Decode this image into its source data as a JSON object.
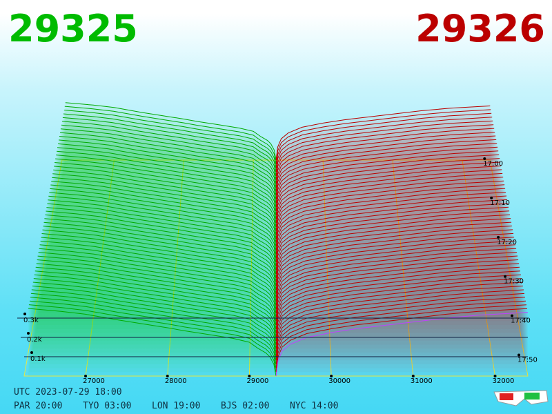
{
  "header": {
    "bid": "29325",
    "ask": "29326"
  },
  "chart_data": {
    "type": "depth3d",
    "bids": {
      "color": "#00aa00",
      "prices": [
        29325,
        29300,
        29250,
        29200,
        29100,
        29000,
        28800,
        28500,
        28200,
        28000,
        27700,
        27400,
        27000,
        26700,
        26300
      ],
      "volumes": [
        0,
        60,
        100,
        120,
        145,
        175,
        195,
        215,
        235,
        250,
        270,
        290,
        320,
        335,
        350
      ]
    },
    "asks": {
      "color": "#bb0000",
      "prices": [
        29326,
        29350,
        29400,
        29500,
        29700,
        30000,
        30300,
        30600,
        31000,
        31400,
        31800,
        32000,
        32400
      ],
      "volumes": [
        0,
        80,
        130,
        165,
        200,
        225,
        245,
        260,
        280,
        300,
        315,
        320,
        330
      ]
    },
    "xlim": [
      26250,
      32400
    ],
    "xticks": [
      27000,
      28000,
      29000,
      30000,
      31000,
      32000
    ],
    "zticks": [
      {
        "value": 100,
        "label": "0.1k"
      },
      {
        "value": 200,
        "label": "0.2k"
      },
      {
        "value": 300,
        "label": "0.3k"
      }
    ],
    "time_ticks": [
      "17:00",
      "17:10",
      "17:20",
      "17:30",
      "17:40",
      "17:50"
    ]
  },
  "footer": {
    "utc": "UTC 2023-07-29 18:00",
    "cities": [
      "PAR 20:00",
      "TYO 03:00",
      "LON 19:00",
      "BJS 02:00",
      "NYC 14:00"
    ]
  }
}
